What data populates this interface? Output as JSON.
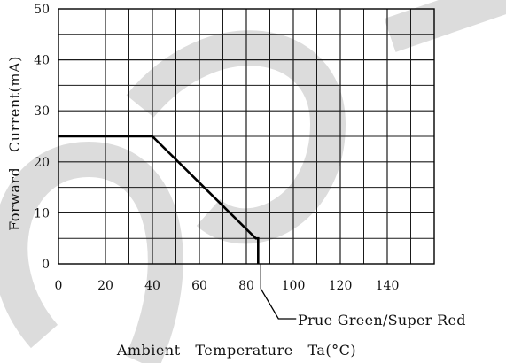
{
  "chart_data": {
    "type": "line",
    "title": "",
    "xlabel": "Ambient   Temperature   Ta(°C)",
    "ylabel": "Forward   Current(mA)",
    "xlim": [
      0,
      160
    ],
    "ylim": [
      0,
      50
    ],
    "x_ticks": [
      "0",
      "20",
      "40",
      "60",
      "80",
      "100",
      "120",
      "140"
    ],
    "y_ticks": [
      "0",
      "10",
      "20",
      "30",
      "40",
      "50"
    ],
    "grid": true,
    "series": [
      {
        "name": "Prue Green/Super Red",
        "points": [
          {
            "x": 0,
            "y": 25
          },
          {
            "x": 40,
            "y": 25
          },
          {
            "x": 84,
            "y": 5
          },
          {
            "x": 85,
            "y": 5
          },
          {
            "x": 85,
            "y": 0
          }
        ]
      }
    ]
  },
  "colors": {
    "line": "#000000",
    "grid": "#1a1a1a",
    "watermark": "#dcdcdc"
  }
}
